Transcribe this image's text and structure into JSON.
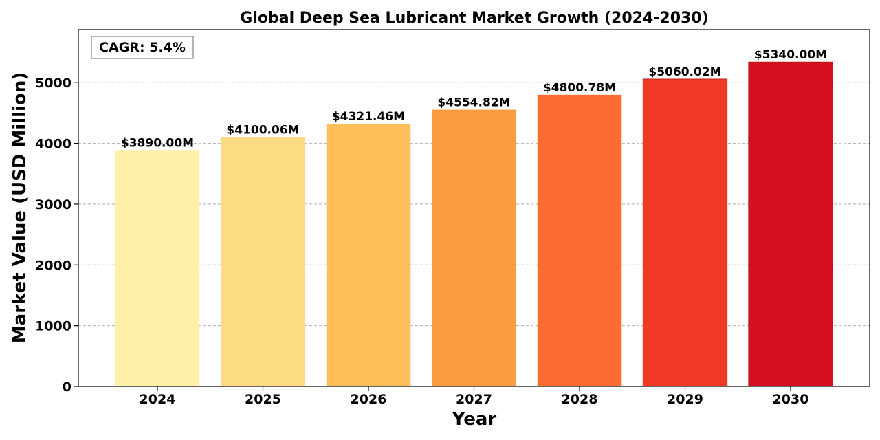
{
  "chart_data": {
    "type": "bar",
    "title": "Global Deep Sea Lubricant Market Growth (2024-2030)",
    "xlabel": "Year",
    "ylabel": "Market Value (USD Million)",
    "categories": [
      "2024",
      "2025",
      "2026",
      "2027",
      "2028",
      "2029",
      "2030"
    ],
    "values": [
      3890.0,
      4100.06,
      4321.46,
      4554.82,
      4800.78,
      5060.02,
      5340.0
    ],
    "data_labels": [
      "$3890.00M",
      "$4100.06M",
      "$4321.46M",
      "$4554.82M",
      "$4800.78M",
      "$5060.02M",
      "$5340.00M"
    ],
    "colors": [
      "#fff0a8",
      "#fcdb82",
      "#febe5a",
      "#fd9b43",
      "#fc6b31",
      "#f03a26",
      "#d41020"
    ],
    "ylim": [
      0,
      5874
    ],
    "yticks": [
      0,
      1000,
      2000,
      3000,
      4000,
      5000
    ],
    "ytick_labels": [
      "0",
      "1000",
      "2000",
      "3000",
      "4000",
      "5000"
    ],
    "grid": true,
    "annotation": "CAGR: 5.4%"
  }
}
